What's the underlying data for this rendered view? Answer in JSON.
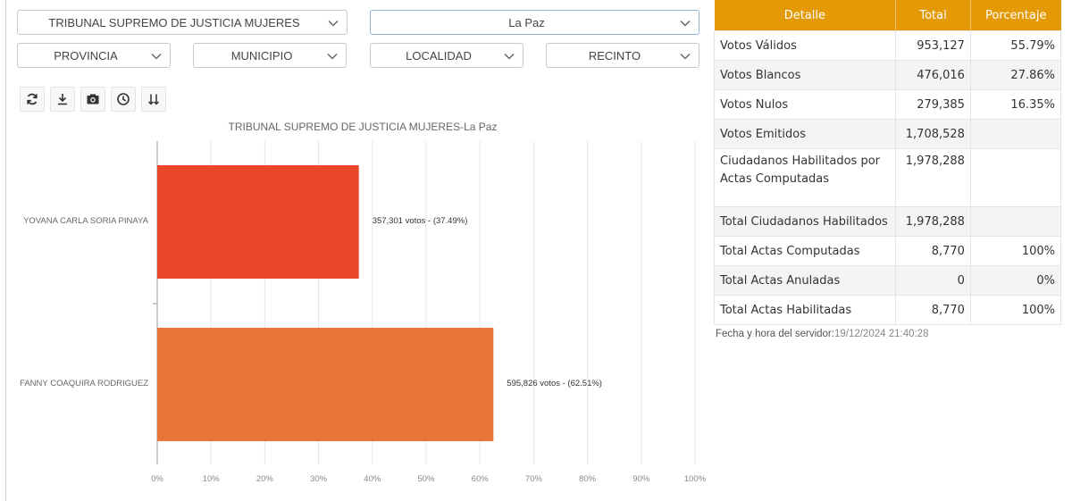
{
  "filters": {
    "election": "TRIBUNAL SUPREMO DE JUSTICIA MUJERES",
    "department": "La Paz",
    "provincia": "PROVINCIA",
    "municipio": "MUNICIPIO",
    "localidad": "LOCALIDAD",
    "recinto": "RECINTO"
  },
  "toolbar": {
    "icons": [
      "refresh-icon",
      "download-icon",
      "camera-icon",
      "clock-icon",
      "sort-icon"
    ]
  },
  "chart_data": {
    "type": "bar",
    "orientation": "horizontal",
    "title": "TRIBUNAL SUPREMO DE JUSTICIA MUJERES-La Paz",
    "categories": [
      "YOVANA CARLA SORIA PINAYA",
      "FANNY COAQUIRA RODRIGUEZ"
    ],
    "values": [
      37.49,
      62.51
    ],
    "votes": [
      357301,
      595826
    ],
    "data_labels": [
      "357,301 votos - (37.49%)",
      "595,826 votos - (62.51%)"
    ],
    "colors": [
      "#e8472b",
      "#e8763b"
    ],
    "xlim": [
      0,
      100
    ],
    "xticks": [
      "0%",
      "10%",
      "20%",
      "30%",
      "40%",
      "50%",
      "60%",
      "70%",
      "80%",
      "90%",
      "100%"
    ],
    "grid": true
  },
  "summary": {
    "headers": [
      "Detalle",
      "Total",
      "Porcentaje"
    ],
    "header_color": "#e39a06",
    "rows": [
      {
        "label": "Votos Válidos",
        "total": "953,127",
        "pct": "55.79%"
      },
      {
        "label": "Votos Blancos",
        "total": "476,016",
        "pct": "27.86%"
      },
      {
        "label": "Votos Nulos",
        "total": "279,385",
        "pct": "16.35%"
      },
      {
        "label": "Votos Emitidos",
        "total": "1,708,528",
        "pct": ""
      },
      {
        "label": "Ciudadanos Habilitados por Actas Computadas",
        "total": "1,978,288",
        "pct": ""
      },
      {
        "label": "Total Ciudadanos Habilitados",
        "total": "1,978,288",
        "pct": ""
      },
      {
        "label": "Total Actas Computadas",
        "total": "8,770",
        "pct": "100%"
      },
      {
        "label": "Total Actas Anuladas",
        "total": "0",
        "pct": "0%"
      },
      {
        "label": "Total Actas Habilitadas",
        "total": "8,770",
        "pct": "100%"
      }
    ]
  },
  "server": {
    "label": "Fecha y hora del servidor:",
    "value": "19/12/2024 21:40:28"
  }
}
